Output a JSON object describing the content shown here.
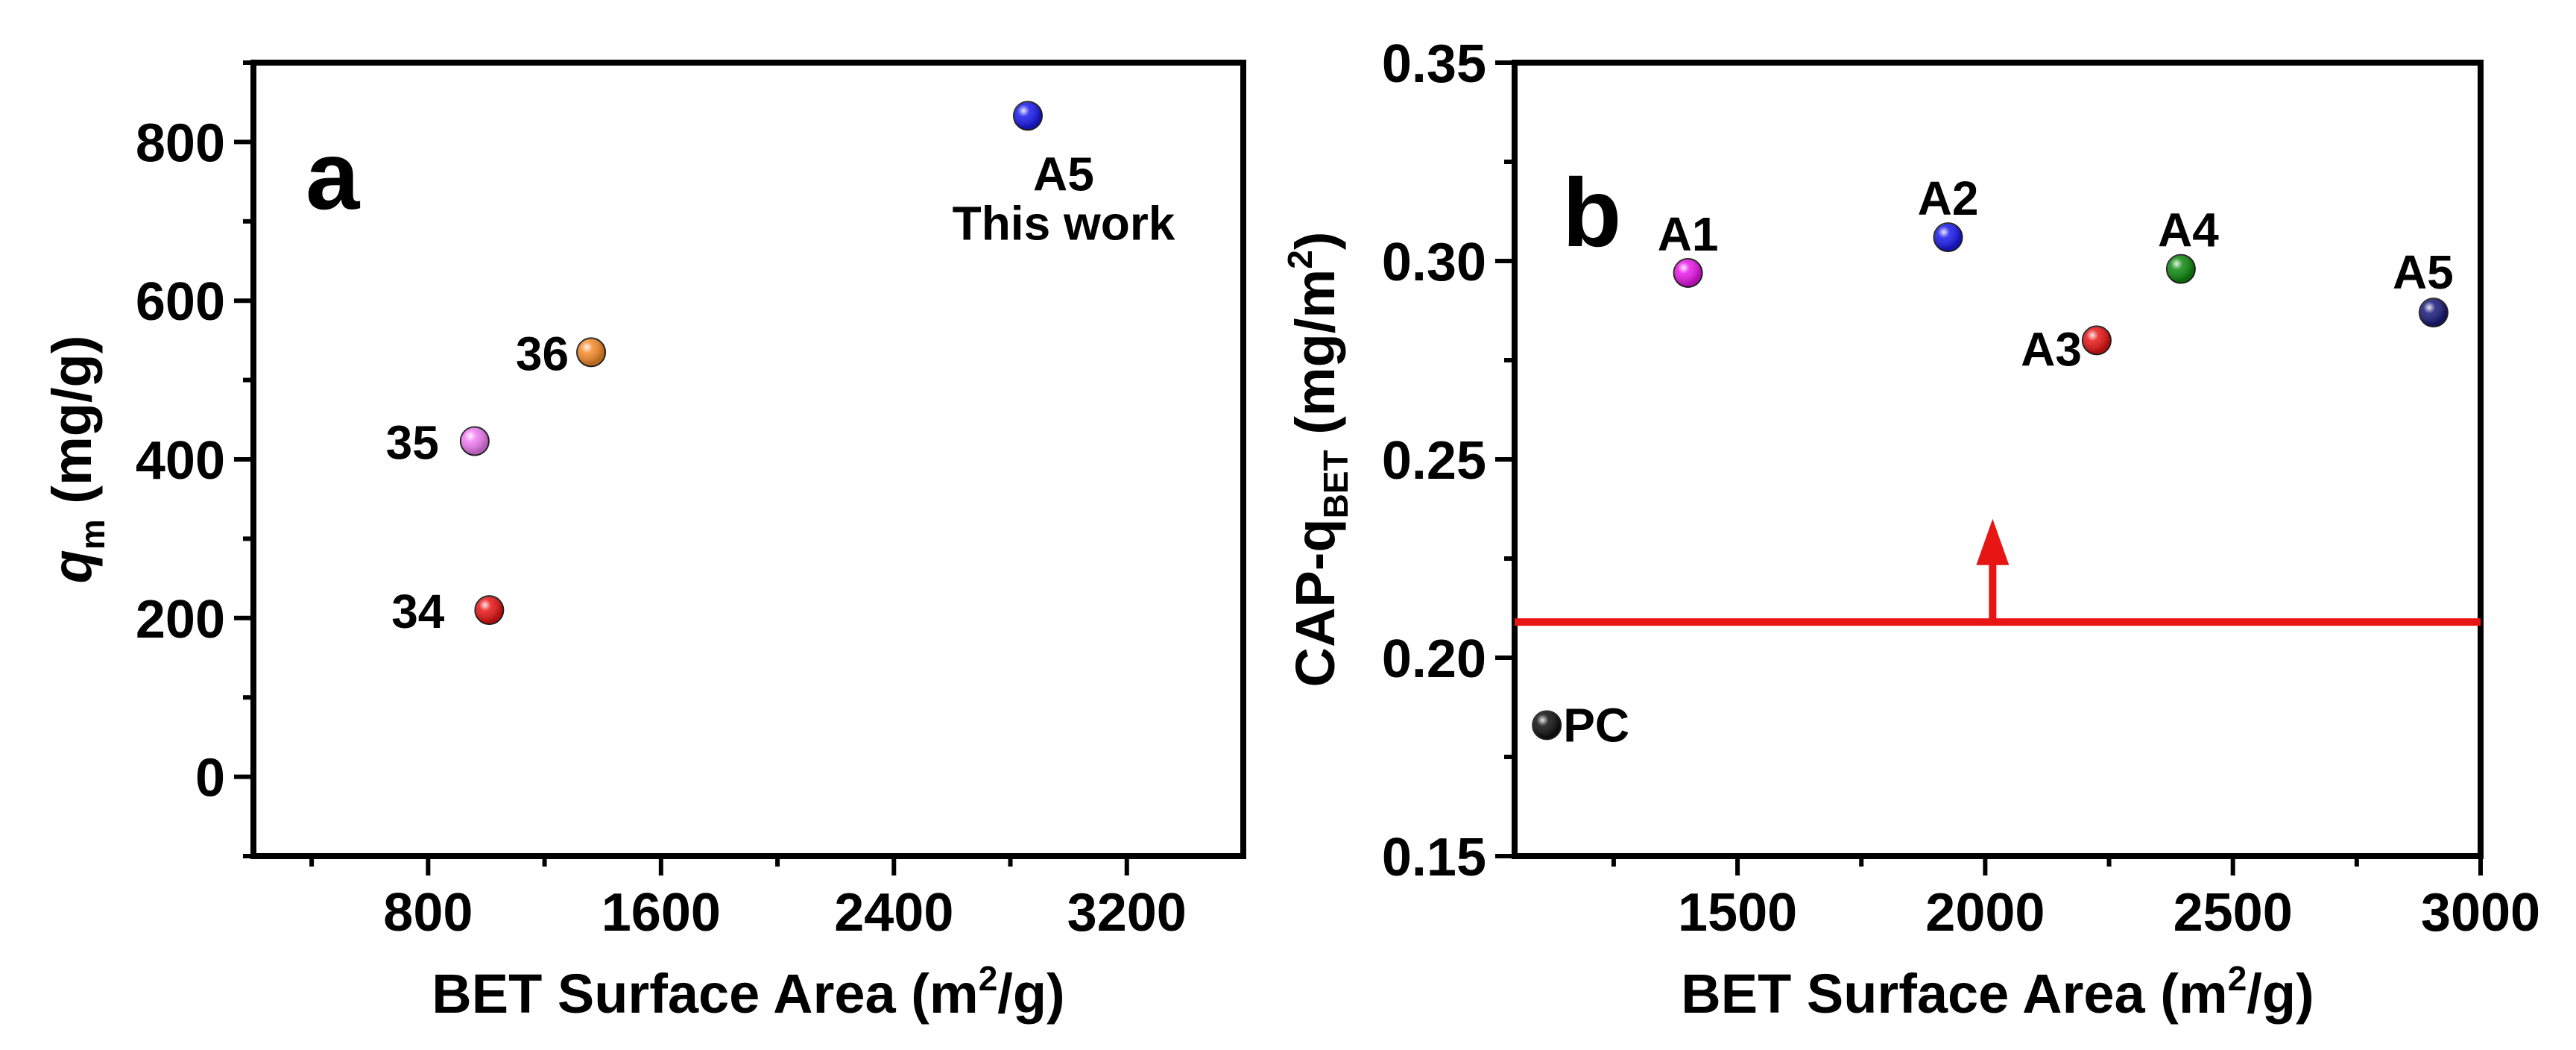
{
  "chart_data": [
    {
      "panel_label": "a",
      "type": "scatter",
      "xlabel": {
        "pre": "BET Surface Area (m",
        "sup": "2",
        "post": "/g)"
      },
      "ylabel": {
        "main": "q",
        "sub": "m",
        "post": " (mg/g)"
      },
      "xlim": [
        200,
        3600
      ],
      "ylim": [
        -100,
        900
      ],
      "xticks": [
        800,
        1600,
        2400,
        3200
      ],
      "xticklabels": [
        "800",
        "1600",
        "2400",
        "3200"
      ],
      "xminor": [
        400,
        1200,
        2000,
        2800
      ],
      "yticks": [
        0,
        200,
        400,
        600,
        800
      ],
      "yticklabels": [
        "0",
        "200",
        "400",
        "600",
        "800"
      ],
      "yminor": [
        -100,
        100,
        300,
        500,
        700,
        900
      ],
      "points": [
        {
          "label": "A5",
          "label2": "This work",
          "x": 2860,
          "y": 833,
          "color": "#1a1aee"
        },
        {
          "label": "36",
          "x": 1360,
          "y": 535,
          "color": "#f58a2a"
        },
        {
          "label": "35",
          "x": 960,
          "y": 423,
          "color": "#f07cf2"
        },
        {
          "label": "34",
          "x": 1010,
          "y": 210,
          "color": "#e81515"
        }
      ]
    },
    {
      "panel_label": "b",
      "type": "scatter",
      "xlabel": {
        "pre": "BET Surface Area (m",
        "sup": "2",
        "post": "/g)"
      },
      "ylabel": {
        "main": "CAP-q",
        "sub": "BET",
        "post": " (mg/m",
        "sup": "2",
        "end": ")"
      },
      "xlim": [
        1050,
        3000
      ],
      "ylim": [
        0.15,
        0.35
      ],
      "xticks": [
        1500,
        2000,
        2500,
        3000
      ],
      "xticklabels": [
        "1500",
        "2000",
        "2500",
        "3000"
      ],
      "xminor": [
        1250,
        1750,
        2250,
        2750
      ],
      "yticks": [
        0.15,
        0.2,
        0.25,
        0.3,
        0.35
      ],
      "yticklabels": [
        "0.15",
        "0.20",
        "0.25",
        "0.30",
        "0.35"
      ],
      "yminor": [
        0.175,
        0.225,
        0.275,
        0.325
      ],
      "threshold": 0.209,
      "arrow_x": 2015,
      "arrow_to": 0.235,
      "threshold_color": "#e81515",
      "points": [
        {
          "label": "A1",
          "x": 1400,
          "y": 0.297,
          "color": "#e818e8"
        },
        {
          "label": "A2",
          "x": 1925,
          "y": 0.306,
          "color": "#1a1aee"
        },
        {
          "label": "A3",
          "x": 2225,
          "y": 0.28,
          "color": "#e81515"
        },
        {
          "label": "A4",
          "x": 2395,
          "y": 0.298,
          "color": "#108a10"
        },
        {
          "label": "A5",
          "x": 2905,
          "y": 0.287,
          "color": "#1a1a7a"
        },
        {
          "label": "PC",
          "x": 1115,
          "y": 0.183,
          "color": "#111111"
        }
      ]
    }
  ]
}
